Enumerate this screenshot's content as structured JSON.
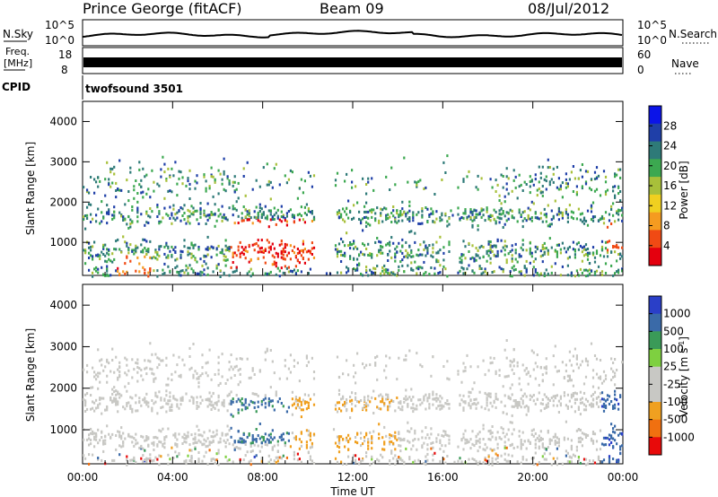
{
  "header": {
    "station": "Prince George (fitACF)",
    "beam": "Beam 09",
    "date": "08/Jul/2012"
  },
  "strips": {
    "nsky_label": "N.Sky",
    "nsky_ticks": [
      "10^5",
      "10^0"
    ],
    "nsearch_label": "N.Search",
    "nsearch_ticks": [
      "10^5",
      "10^0"
    ],
    "freq_label_1": "Freq.",
    "freq_label_2": "[MHz]",
    "freq_ticks": [
      "18",
      "8"
    ],
    "nave_label": "Nave",
    "nave_ticks": [
      "60",
      "0"
    ],
    "cpid_label": "CPID",
    "cpid_value": "twofsound 3501"
  },
  "chart_data": [
    {
      "type": "heatmap",
      "name": "power",
      "ylabel": "Slant Range [km]",
      "yticks": [
        "4000",
        "3000",
        "2000",
        "1000"
      ],
      "ylim": [
        180,
        4500
      ],
      "xlim": [
        0,
        24
      ],
      "colorbar": {
        "label": "Power [dB]",
        "ticks": [
          "28",
          "24",
          "20",
          "16",
          "12",
          "8",
          "4"
        ],
        "range": [
          0,
          30
        ],
        "colors": [
          "#0b14e8",
          "#1f3fa8",
          "#2e7a78",
          "#3ca850",
          "#a8c03a",
          "#f0d020",
          "#f59b20",
          "#f04a14",
          "#e4000e"
        ]
      }
    },
    {
      "type": "heatmap",
      "name": "velocity",
      "ylabel": "Slant Range [km]",
      "yticks": [
        "4000",
        "3000",
        "2000",
        "1000"
      ],
      "ylim": [
        180,
        4500
      ],
      "xlim": [
        0,
        24
      ],
      "colorbar": {
        "label": "Velocity [m s",
        "label_sup": "-1",
        "label_close": "]",
        "ticks": [
          "1000",
          "500",
          "100",
          "25",
          "-25",
          "-100",
          "-500",
          "-1000"
        ],
        "colors": [
          "#2a3fc8",
          "#3a6aa8",
          "#3a9a58",
          "#7ed040",
          "#c8c8c4",
          "#c8c8c4",
          "#f0a020",
          "#f07010",
          "#e80a0a"
        ]
      }
    }
  ],
  "xaxis": {
    "label": "Time UT",
    "ticks": [
      "00:00",
      "04:00",
      "08:00",
      "12:00",
      "16:00",
      "20:00",
      "00:00"
    ]
  }
}
